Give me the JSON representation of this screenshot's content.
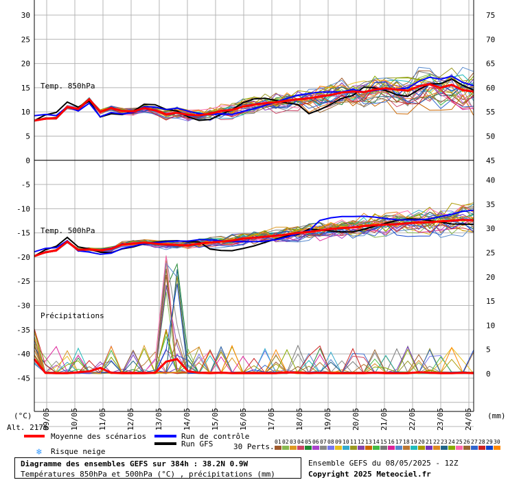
{
  "chart_data": {
    "type": "line",
    "title": "Diagramme des ensembles GEFS sur 384h : 38.2N 0.9W",
    "subtitle": "Températures 850hPa et 500hPa (°C) , précipitations (mm)",
    "altitude": "Alt. 217m",
    "left_unit": "(°C)",
    "right_unit": "(mm)",
    "x_ticks": [
      "09/05",
      "10/05",
      "11/05",
      "12/05",
      "13/05",
      "14/05",
      "15/05",
      "16/05",
      "17/05",
      "18/05",
      "19/05",
      "20/05",
      "21/05",
      "22/05",
      "23/05",
      "24/05"
    ],
    "left_axis": {
      "ylim": [
        -55,
        30
      ],
      "ticks": [
        30,
        25,
        20,
        15,
        10,
        5,
        0,
        -5,
        -10,
        -15,
        -20,
        -25,
        -30,
        -35,
        -40,
        -45
      ]
    },
    "right_axis_top": {
      "ylim": [
        45,
        75
      ],
      "ticks": [
        75,
        70,
        65,
        60,
        55,
        50,
        45
      ]
    },
    "right_axis_bottom": {
      "ylim": [
        0,
        40
      ],
      "ticks": [
        40,
        35,
        30,
        25,
        20,
        15,
        10,
        5,
        0
      ]
    },
    "panels": [
      {
        "name": "Temp. 850hPa",
        "unit": "°C",
        "x_start": "08/05 12Z",
        "x_step_h": 12,
        "mean": [
          8.2,
          8.6,
          8.7,
          11.0,
          10.6,
          12.6,
          10.0,
          10.8,
          10.2,
          10.1,
          10.8,
          10.3,
          9.5,
          9.8,
          9.4,
          9.3,
          9.6,
          10.2,
          10.4,
          11.1,
          11.5,
          11.8,
          12.0,
          12.3,
          12.6,
          12.8,
          13.2,
          13.5,
          14.0,
          14.2,
          14.1,
          14.6,
          14.9,
          14.6,
          14.4,
          15.3,
          15.7,
          15.0,
          15.6,
          14.5,
          14.2
        ]
      },
      {
        "name": "Temp. 500hPa",
        "unit": "°C",
        "mean": [
          -19.8,
          -19.0,
          -18.6,
          -16.8,
          -18.5,
          -18.4,
          -18.6,
          -18.3,
          -17.4,
          -17.2,
          -17.0,
          -17.2,
          -17.4,
          -17.5,
          -17.6,
          -17.2,
          -17.0,
          -16.8,
          -16.6,
          -16.2,
          -16.0,
          -15.8,
          -15.6,
          -15.3,
          -15.0,
          -14.8,
          -14.5,
          -14.2,
          -14.0,
          -13.9,
          -13.6,
          -13.4,
          -13.3,
          -13.2,
          -13.0,
          -12.9,
          -12.8,
          -12.6,
          -12.5,
          -12.3,
          -12.4
        ]
      },
      {
        "name": "Précipitations",
        "unit": "mm",
        "mean": [
          3.0,
          0.2,
          0.1,
          0.1,
          0.3,
          0.5,
          1.2,
          0.2,
          0.1,
          0.1,
          0.1,
          0.2,
          2.5,
          3.0,
          0.5,
          0.2,
          0.1,
          0.2,
          0.1,
          0.1,
          0.1,
          0.1,
          0.1,
          0.3,
          0.2,
          0.1,
          0.2,
          0.1,
          0.1,
          0.1,
          0.1,
          0.2,
          0.1,
          0.1,
          0.1,
          0.3,
          0.2,
          0.1,
          0.1,
          0.2,
          0.1
        ]
      }
    ],
    "grid": true
  },
  "panels_labels": {
    "t850": "Temp. 850hPa",
    "t500": "Temp. 500hPa",
    "precip": "Précipitations"
  },
  "legend": {
    "mean": "Moyenne des scénarios",
    "control": "Run de contrôle",
    "gfs": "Run GFS",
    "snow": "Risque neige",
    "perts_label": "30 Perts.",
    "perts": [
      "01",
      "02",
      "03",
      "04",
      "05",
      "06",
      "07",
      "08",
      "09",
      "10",
      "11",
      "12",
      "13",
      "14",
      "15",
      "16",
      "17",
      "18",
      "19",
      "20",
      "21",
      "22",
      "23",
      "24",
      "25",
      "26",
      "27",
      "28",
      "29",
      "30"
    ]
  },
  "colors": {
    "mean": "#ff0000",
    "control": "#0000ff",
    "gfs": "#000000",
    "grid": "#b4b4b4",
    "snow_icon": "#3399ff",
    "perts": [
      "#a05a2c",
      "#88b850",
      "#dd9922",
      "#cc4466",
      "#228833",
      "#aa44cc",
      "#888888",
      "#7777ee",
      "#e6c020",
      "#33aacc",
      "#999922",
      "#8844aa",
      "#cc6600",
      "#44bb44",
      "#777777",
      "#dd2299",
      "#5588cc",
      "#bb7733",
      "#22bbbb",
      "#aa9900",
      "#7733bb",
      "#dd8822",
      "#226688",
      "#88aa00",
      "#ff66aa",
      "#996633",
      "#3366cc",
      "#cc2222",
      "#1144cc",
      "#ff8800"
    ]
  },
  "footer": {
    "title": "Diagramme des ensembles GEFS sur 384h : 38.2N 0.9W",
    "subtitle": "Températures 850hPa et 500hPa (°C) , précipitations (mm)",
    "run_info": "Ensemble GEFS du 08/05/2025 - 12Z",
    "copyright": "Copyright 2025 Meteociel.fr"
  }
}
